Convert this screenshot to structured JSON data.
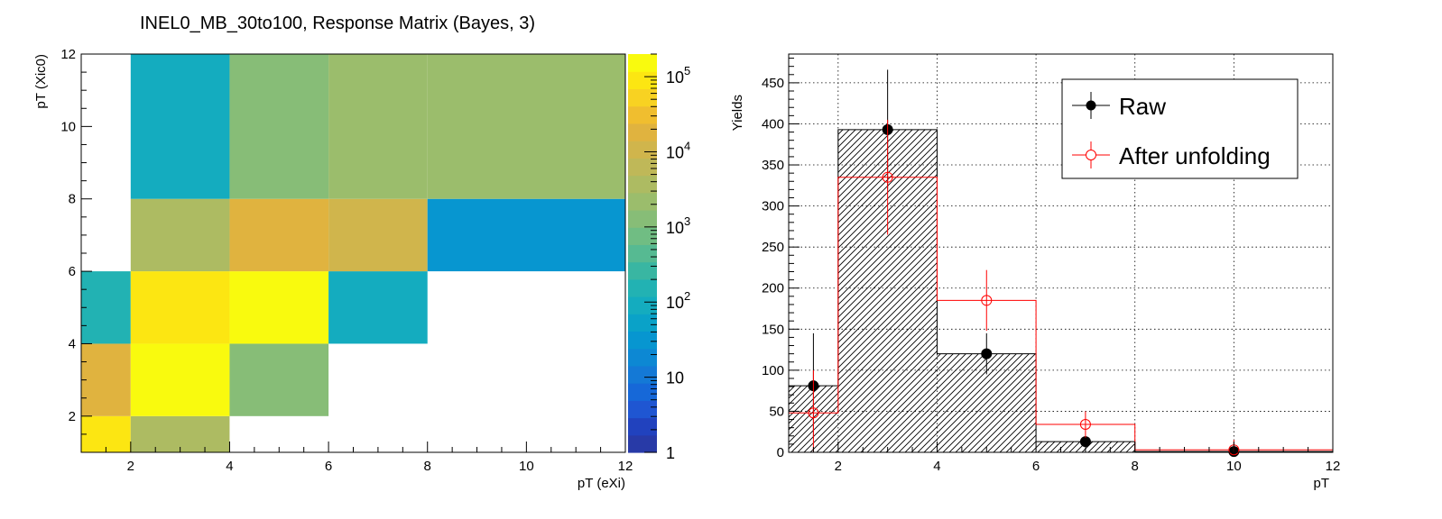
{
  "chart_data": [
    {
      "type": "heatmap",
      "title": "INEL0_MB_30to100, Response Matrix (Bayes, 3)",
      "xlabel": "pT (eXi)",
      "ylabel": "pT (Xic0)",
      "x_edges": [
        1,
        2,
        4,
        6,
        8,
        12
      ],
      "y_edges": [
        1,
        2,
        4,
        6,
        8,
        12
      ],
      "xlim": [
        1,
        12
      ],
      "ylim": [
        1,
        12
      ],
      "x_ticks": [
        "2",
        "4",
        "6",
        "8",
        "10",
        "12"
      ],
      "y_ticks": [
        "2",
        "4",
        "6",
        "8",
        "10",
        "12"
      ],
      "zscale": "log",
      "zlim": [
        1,
        200000
      ],
      "z_ticks": [
        {
          "v": 1,
          "base": "1",
          "exp": ""
        },
        {
          "v": 10,
          "base": "10",
          "exp": ""
        },
        {
          "v": 100,
          "base": "10",
          "exp": "2"
        },
        {
          "v": 1000,
          "base": "10",
          "exp": "3"
        },
        {
          "v": 10000,
          "base": "10",
          "exp": "4"
        },
        {
          "v": 100000,
          "base": "10",
          "exp": "5"
        }
      ],
      "palette": [
        "#283aa7",
        "#2142be",
        "#1f56d2",
        "#1668d8",
        "#1479d6",
        "#0d88d3",
        "#0796d0",
        "#0aa2c8",
        "#14acbf",
        "#22b2b3",
        "#39b6a2",
        "#56ba92",
        "#70bd83",
        "#87bd77",
        "#9bbd6c",
        "#adbb62",
        "#bfb858",
        "#d0b54c",
        "#e0b33f",
        "#f0be2f",
        "#f8d222",
        "#fce612",
        "#f9fa0e"
      ],
      "cells": [
        {
          "x": 0,
          "y": 0,
          "z": 80000
        },
        {
          "x": 1,
          "y": 0,
          "z": 4500
        },
        {
          "x": 0,
          "y": 1,
          "z": 20000
        },
        {
          "x": 1,
          "y": 1,
          "z": 200000
        },
        {
          "x": 2,
          "y": 1,
          "z": 1200
        },
        {
          "x": 0,
          "y": 2,
          "z": 200
        },
        {
          "x": 1,
          "y": 2,
          "z": 90000
        },
        {
          "x": 2,
          "y": 2,
          "z": 150000
        },
        {
          "x": 3,
          "y": 2,
          "z": 100
        },
        {
          "x": 1,
          "y": 3,
          "z": 3000
        },
        {
          "x": 2,
          "y": 3,
          "z": 18000
        },
        {
          "x": 3,
          "y": 3,
          "z": 10000
        },
        {
          "x": 4,
          "y": 3,
          "z": 40
        },
        {
          "x": 1,
          "y": 4,
          "z": 80
        },
        {
          "x": 2,
          "y": 4,
          "z": 1000
        },
        {
          "x": 3,
          "y": 4,
          "z": 2500
        },
        {
          "x": 4,
          "y": 4,
          "z": 2500
        }
      ]
    },
    {
      "type": "bar",
      "xlabel": "pT",
      "ylabel": "Yields",
      "xlim": [
        1,
        12
      ],
      "ylim": [
        0,
        485
      ],
      "grid": true,
      "legend_position": "top-right",
      "x_ticks": [
        "2",
        "4",
        "6",
        "8",
        "10",
        "12"
      ],
      "y_ticks": [
        "0",
        "50",
        "100",
        "150",
        "200",
        "250",
        "300",
        "350",
        "400",
        "450"
      ],
      "bin_edges": [
        1,
        2,
        4,
        6,
        8,
        12
      ],
      "series": [
        {
          "name": "Raw",
          "color": "#000000",
          "marker": "filled-circle",
          "hatched": true,
          "x": [
            1.5,
            3,
            5,
            7,
            10
          ],
          "values": [
            81,
            393,
            120,
            13,
            1
          ],
          "err": [
            64,
            73,
            25,
            5,
            1
          ]
        },
        {
          "name": "After unfolding",
          "color": "#ff0000",
          "marker": "open-circle",
          "hatched": false,
          "x": [
            1.5,
            3,
            5,
            7,
            10
          ],
          "values": [
            48,
            335,
            185,
            34,
            3
          ],
          "err": [
            52,
            70,
            37,
            16,
            12
          ]
        }
      ]
    }
  ]
}
